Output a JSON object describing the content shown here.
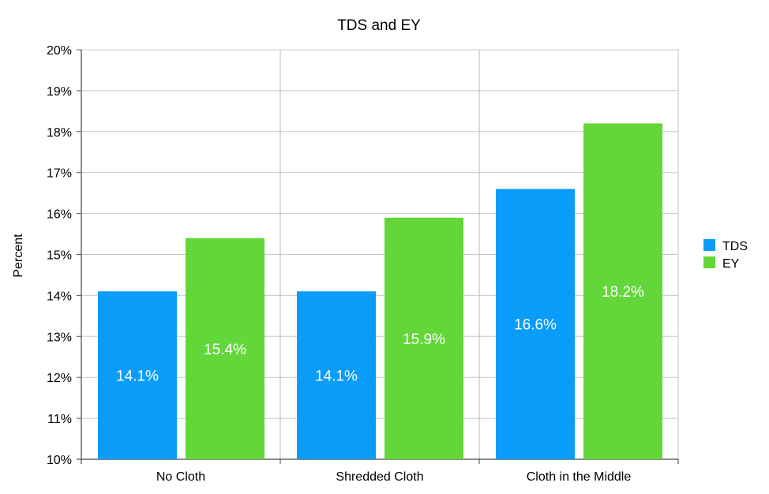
{
  "chart_data": {
    "type": "bar",
    "title": "TDS and EY",
    "xlabel": "",
    "ylabel": "Percent",
    "ylim": [
      10,
      20
    ],
    "yticks": [
      "10%",
      "11%",
      "12%",
      "13%",
      "14%",
      "15%",
      "16%",
      "17%",
      "18%",
      "19%",
      "20%"
    ],
    "categories": [
      "No Cloth",
      "Shredded Cloth",
      "Cloth in the Middle"
    ],
    "series": [
      {
        "name": "TDS",
        "values": [
          14.1,
          14.1,
          16.6
        ],
        "labels": [
          "14.1%",
          "14.1%",
          "16.6%"
        ],
        "color": "#0a9cf8"
      },
      {
        "name": "EY",
        "values": [
          15.4,
          15.9,
          18.2
        ],
        "labels": [
          "15.4%",
          "15.9%",
          "18.2%"
        ],
        "color": "#63d63a"
      }
    ],
    "grid": true,
    "legend": "right"
  }
}
